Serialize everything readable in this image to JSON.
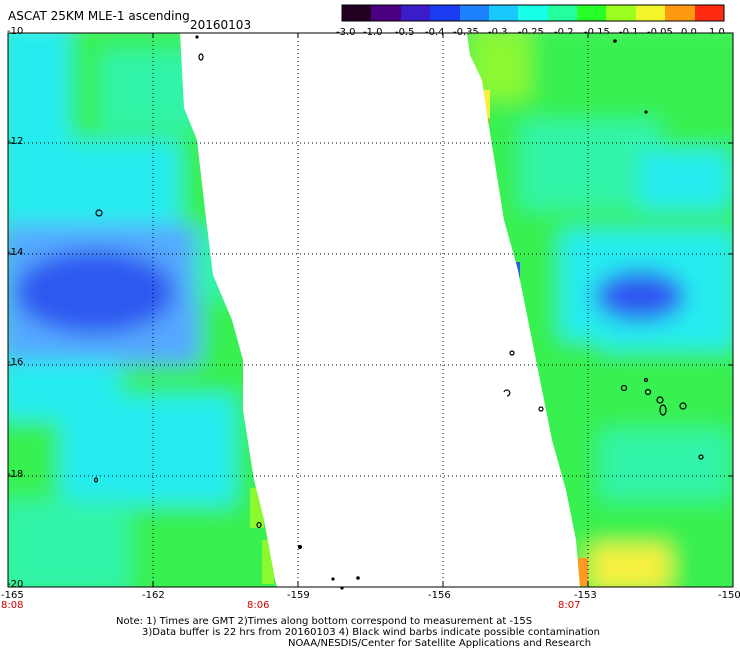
{
  "header": {
    "title": "ASCAT 25KM MLE-1 ascending",
    "date": "20160103"
  },
  "colorbar": {
    "ticks": [
      "-3.0",
      "-1.0",
      "-0.5",
      "-0.4",
      "-0.35",
      "-0.3",
      "-0.25",
      "-0.2",
      "-0.15",
      "-0.1",
      "-0.05",
      "0.0",
      "1.0"
    ],
    "colors": [
      "#220022",
      "#4b0082",
      "#3a1dc8",
      "#1a3cf0",
      "#1e82ff",
      "#18c8ff",
      "#18ffe8",
      "#22ff9c",
      "#28ff28",
      "#9cff20",
      "#f4f42a",
      "#ff9a10",
      "#ff2a10"
    ]
  },
  "map": {
    "lat_labels": [
      "-10",
      "-12",
      "-14",
      "-16",
      "-18",
      "-20"
    ],
    "lon_labels": [
      "-165",
      "-162",
      "-159",
      "-156",
      "-153",
      "-150"
    ],
    "time_labels": [
      "8:08",
      "8:06",
      "8:07"
    ],
    "colors": {
      "blue": "#2f58f0",
      "light_blue": "#54a8ff",
      "cyan": "#28ecf0",
      "aqua_green": "#32f4a8",
      "green": "#38f050",
      "lime": "#8cf830",
      "yellow": "#f8f040",
      "orange": "#ff9a22"
    }
  },
  "notes": {
    "line1": "Note: 1) Times are GMT 2)Times along bottom correspond to measurement at -15S",
    "line2": "3)Data buffer is 22 hrs from 20160103 4) Black wind barbs indicate possible contamination",
    "line3": "NOAA/NESDIS/Center for Satellite Applications and Research"
  }
}
